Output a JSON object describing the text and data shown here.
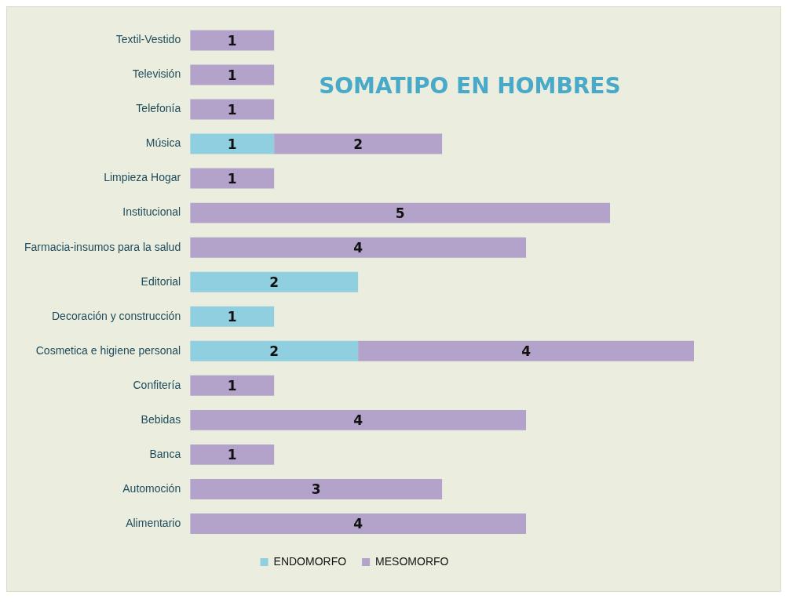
{
  "chart_data": {
    "type": "bar",
    "orientation": "horizontal",
    "stacked": true,
    "title": "SOMATIPO EN HOMBRES",
    "categories": [
      "Textil-Vestido",
      "Televisión",
      "Telefonía",
      "Música",
      "Limpieza Hogar",
      "Institucional",
      "Farmacia-insumos para la salud",
      "Editorial",
      "Decoración y construcción",
      "Cosmetica e higiene personal",
      "Confitería",
      "Bebidas",
      "Banca",
      "Automoción",
      "Alimentario"
    ],
    "series": [
      {
        "name": "ENDOMORFO",
        "color": "#8fcfe0",
        "values": [
          null,
          null,
          null,
          1,
          null,
          null,
          null,
          2,
          1,
          2,
          null,
          null,
          null,
          null,
          null
        ]
      },
      {
        "name": "MESOMORFO",
        "color": "#b3a2c9",
        "values": [
          1,
          1,
          1,
          2,
          1,
          5,
          4,
          null,
          null,
          4,
          1,
          4,
          1,
          3,
          4
        ]
      }
    ],
    "data_labels": true,
    "legend": "bottom",
    "grid": false
  }
}
